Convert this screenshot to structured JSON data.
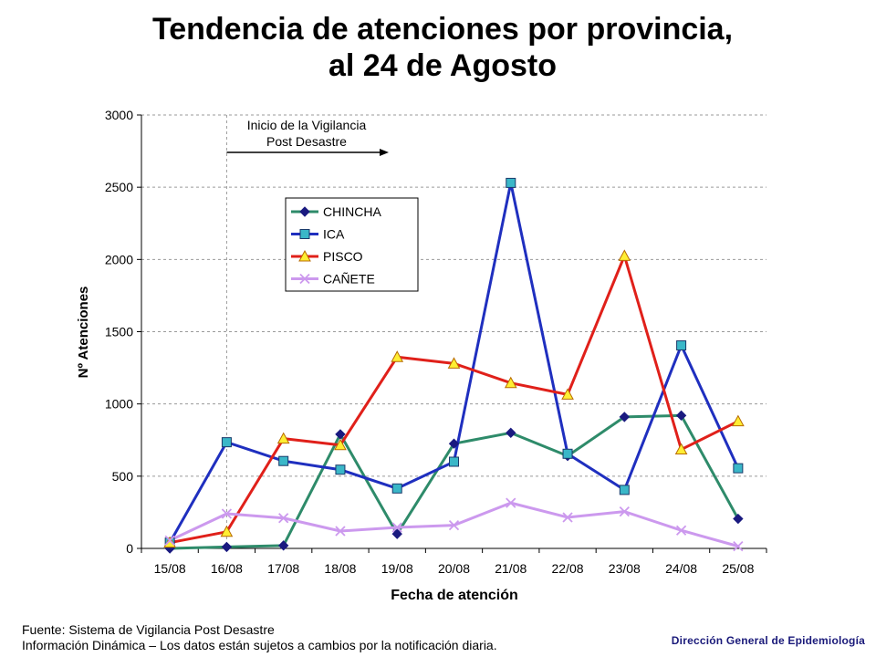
{
  "title_line1": "Tendencia de atenciones por provincia,",
  "title_line2": "al 24 de Agosto",
  "footer": {
    "source": "Fuente: Sistema de Vigilancia Post Desastre",
    "note": "Información Dinámica – Los datos están sujetos a cambios por la notificación diaria.",
    "org": "Dirección General de Epidemiología"
  },
  "chart_data": {
    "type": "line",
    "xlabel": "Fecha de atención",
    "ylabel": "Nº Atenciones",
    "categories": [
      "15/08",
      "16/08",
      "17/08",
      "18/08",
      "19/08",
      "20/08",
      "21/08",
      "22/08",
      "23/08",
      "24/08",
      "25/08"
    ],
    "ylim": [
      0,
      3000
    ],
    "yticks": [
      0,
      500,
      1000,
      1500,
      2000,
      2500,
      3000
    ],
    "grid": "horizontal-dashed",
    "legend_position": "upper-left",
    "series": [
      {
        "name": "CHINCHA",
        "color": "#2e8b6a",
        "marker": "diamond",
        "marker_color": "#1a1a80",
        "values": [
          0,
          10,
          20,
          790,
          100,
          725,
          800,
          640,
          910,
          920,
          205
        ]
      },
      {
        "name": "ICA",
        "color": "#1f2fbf",
        "marker": "square",
        "marker_color": "#3ab7c8",
        "values": [
          40,
          735,
          605,
          545,
          415,
          600,
          2530,
          655,
          405,
          1405,
          555
        ]
      },
      {
        "name": "PISCO",
        "color": "#e0201a",
        "marker": "triangle",
        "marker_color": "#ffee33",
        "values": [
          40,
          115,
          760,
          715,
          1325,
          1280,
          1145,
          1065,
          2025,
          685,
          880
        ]
      },
      {
        "name": "CAÑETE",
        "color": "#cc99ee",
        "marker": "x",
        "marker_color": "#cc99ee",
        "values": [
          55,
          240,
          210,
          120,
          145,
          160,
          315,
          215,
          255,
          125,
          15
        ]
      }
    ],
    "annotation": {
      "line1": "Inicio de la Vigilancia",
      "line2": "Post Desastre",
      "category": "16/08"
    }
  }
}
